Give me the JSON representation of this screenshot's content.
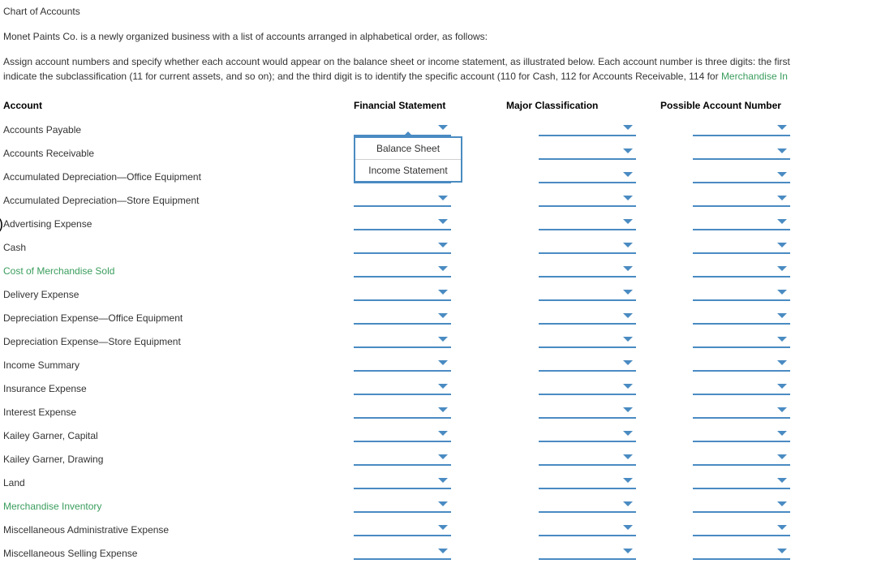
{
  "title": "Chart of Accounts",
  "intro1": "Monet Paints Co. is a newly organized business with a list of accounts arranged in alphabetical order, as follows:",
  "intro2a": "Assign account numbers and specify whether each account would appear on the balance sheet or income statement, as illustrated below. Each account number is three digits: the first",
  "intro2b": "indicate the subclassification (11 for current assets, and so on); and the third digit is to identify the specific account (110 for Cash, 112 for Accounts Receivable, 114 for ",
  "intro2c": "Merchandise In",
  "headers": {
    "account": "Account",
    "fin": "Financial Statement",
    "major": "Major Classification",
    "number": "Possible Account Number"
  },
  "dropdown_options": {
    "opt1": "Balance Sheet",
    "opt2": "Income Statement"
  },
  "rows": [
    {
      "label": "Accounts Payable",
      "green": false,
      "show_popup": true,
      "cursor": false
    },
    {
      "label": "Accounts Receivable",
      "green": false,
      "show_popup": false,
      "cursor": false
    },
    {
      "label": "Accumulated Depreciation—Office Equipment",
      "green": false,
      "show_popup": false,
      "cursor": false
    },
    {
      "label": "Accumulated Depreciation—Store Equipment",
      "green": false,
      "show_popup": false,
      "cursor": false
    },
    {
      "label": "Advertising Expense",
      "green": false,
      "show_popup": false,
      "cursor": true
    },
    {
      "label": "Cash",
      "green": false,
      "show_popup": false,
      "cursor": false
    },
    {
      "label": "Cost of Merchandise Sold",
      "green": true,
      "show_popup": false,
      "cursor": false
    },
    {
      "label": "Delivery Expense",
      "green": false,
      "show_popup": false,
      "cursor": false
    },
    {
      "label": "Depreciation Expense—Office Equipment",
      "green": false,
      "show_popup": false,
      "cursor": false
    },
    {
      "label": "Depreciation Expense—Store Equipment",
      "green": false,
      "show_popup": false,
      "cursor": false
    },
    {
      "label": "Income Summary",
      "green": false,
      "show_popup": false,
      "cursor": false
    },
    {
      "label": "Insurance Expense",
      "green": false,
      "show_popup": false,
      "cursor": false
    },
    {
      "label": "Interest Expense",
      "green": false,
      "show_popup": false,
      "cursor": false
    },
    {
      "label": "Kailey Garner, Capital",
      "green": false,
      "show_popup": false,
      "cursor": false
    },
    {
      "label": "Kailey Garner, Drawing",
      "green": false,
      "show_popup": false,
      "cursor": false
    },
    {
      "label": "Land",
      "green": false,
      "show_popup": false,
      "cursor": false
    },
    {
      "label": "Merchandise Inventory",
      "green": true,
      "show_popup": false,
      "cursor": false
    },
    {
      "label": "Miscellaneous Administrative Expense",
      "green": false,
      "show_popup": false,
      "cursor": false
    },
    {
      "label": "Miscellaneous Selling Expense",
      "green": false,
      "show_popup": false,
      "cursor": false
    }
  ],
  "colors": {
    "text": "#333333",
    "link_green": "#3a9d5d",
    "dropdown_border": "#4a8bc2",
    "caret": "#4a8bc2",
    "background": "#ffffff"
  }
}
